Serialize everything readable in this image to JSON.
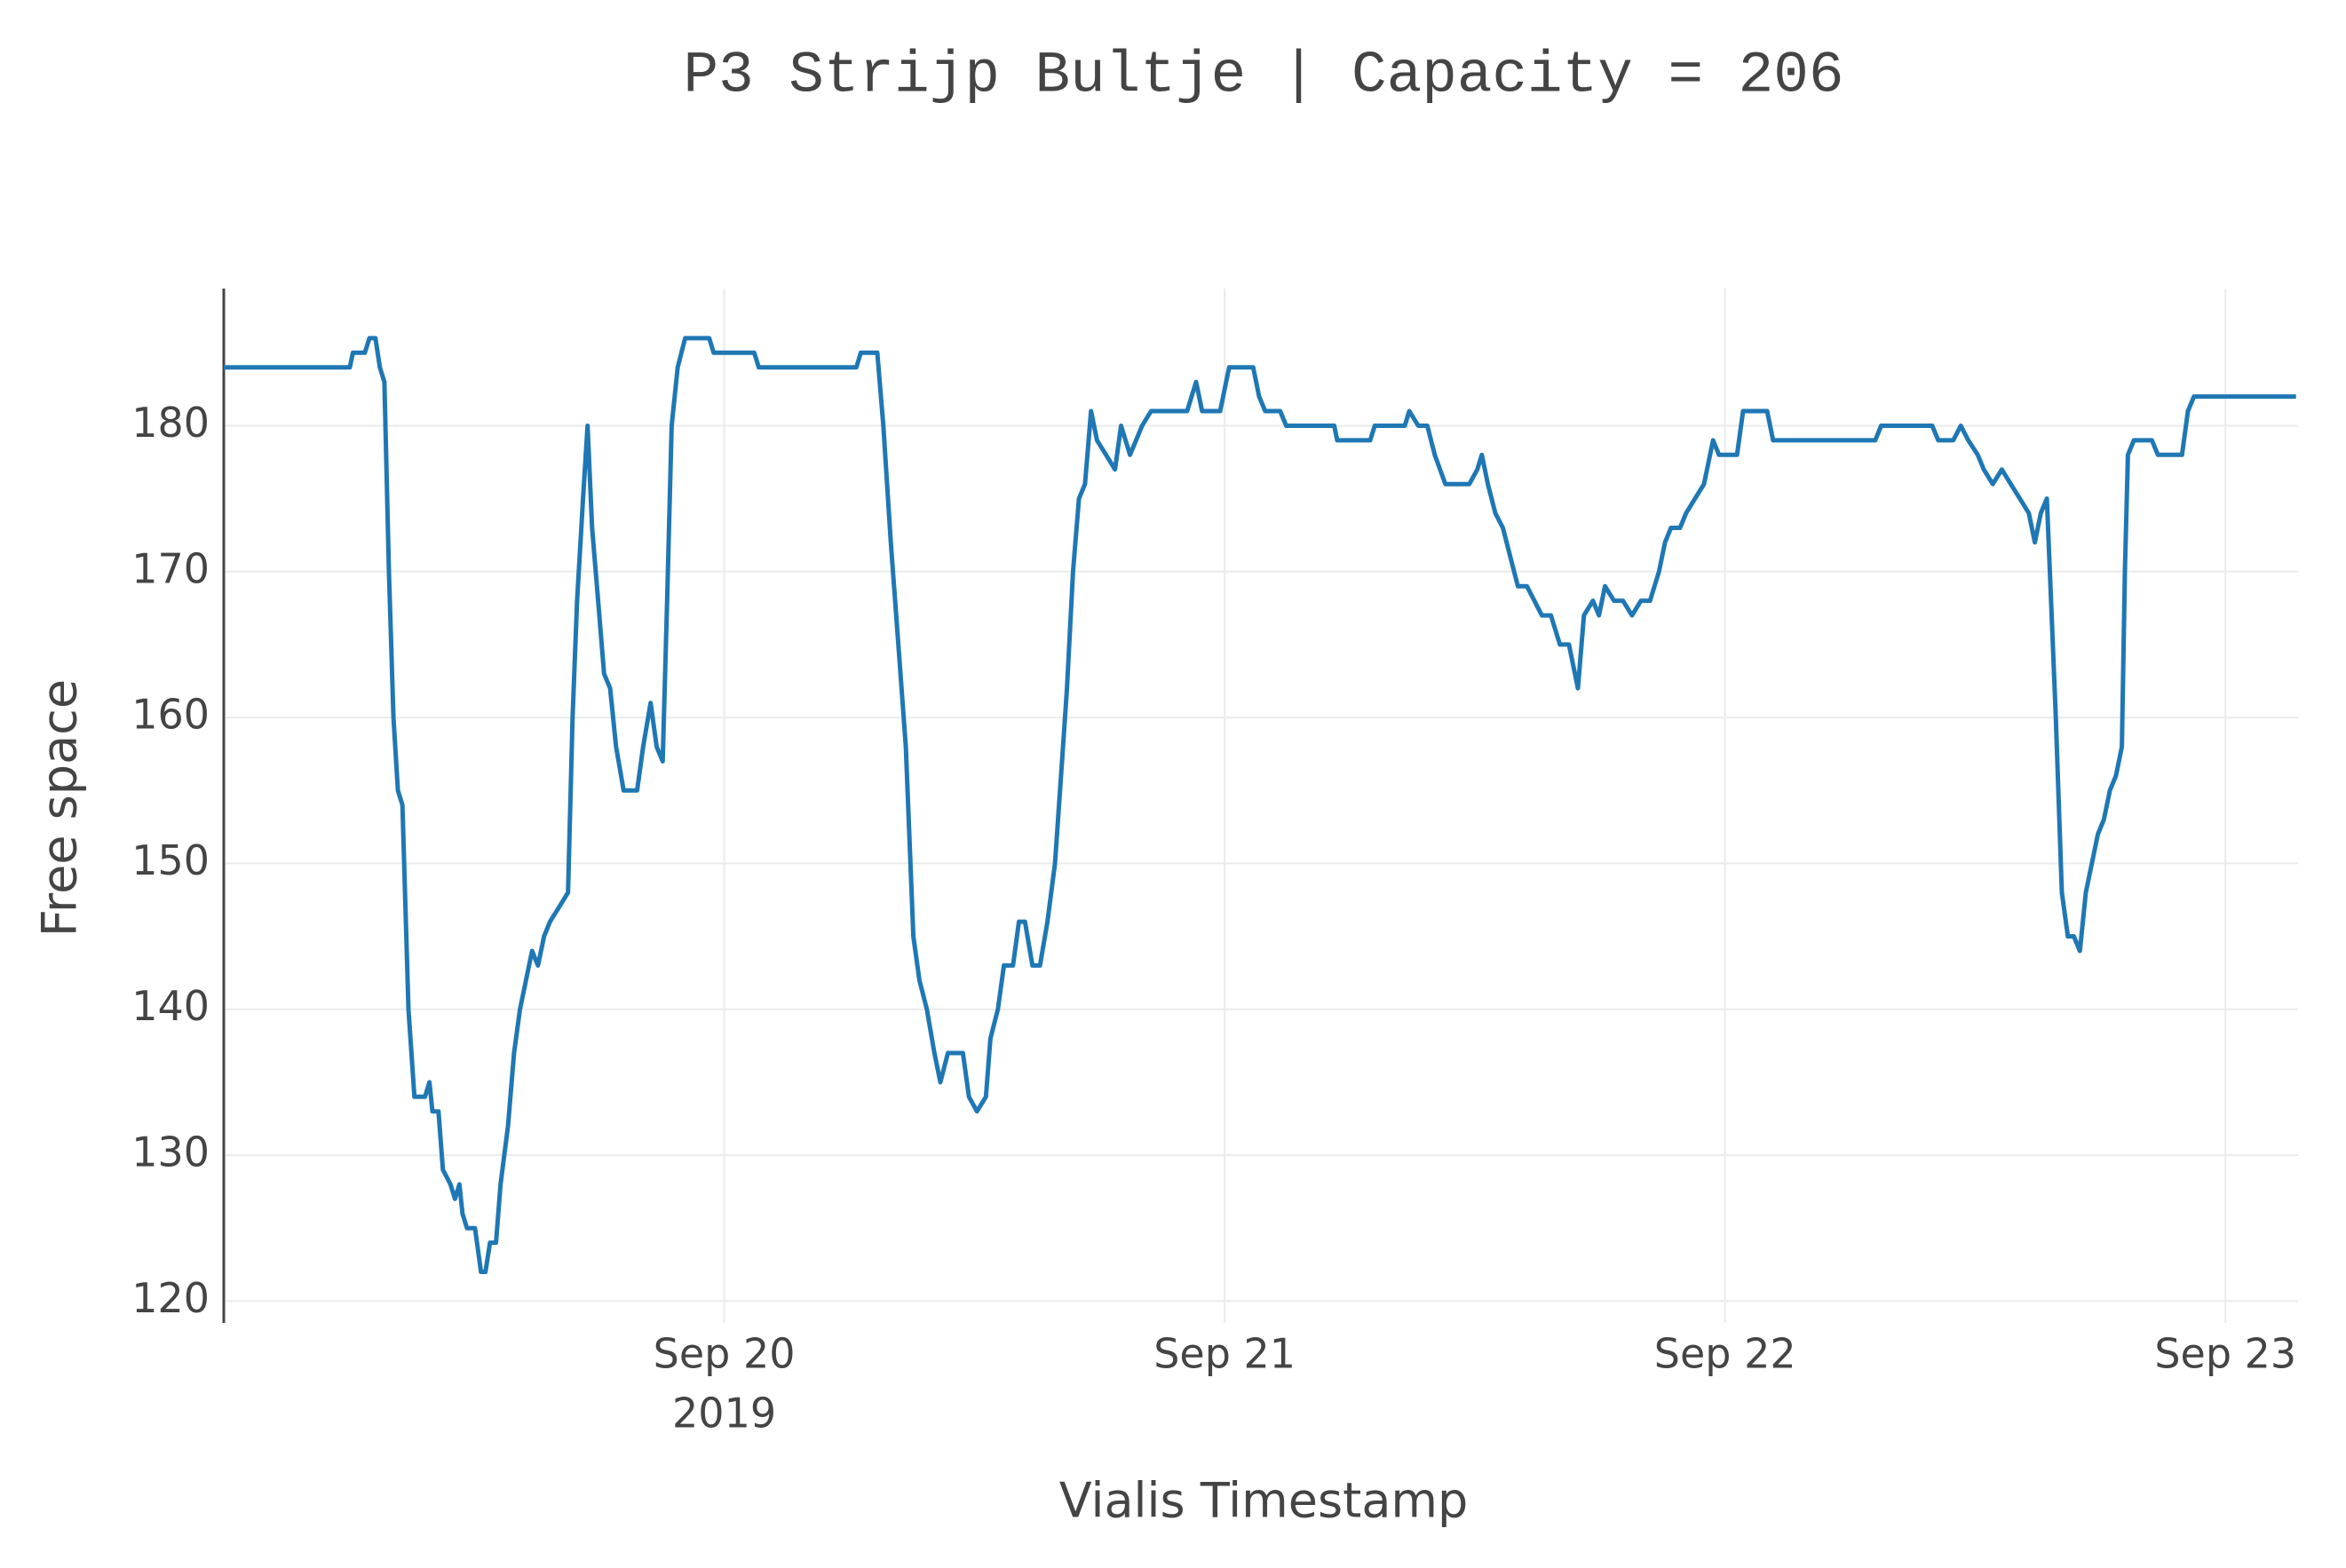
{
  "chart_data": {
    "type": "line",
    "title": "P3 Strijp Bultje  | Capacity = 206",
    "x_label": "Vialis Timestamp",
    "y_label": "Free space",
    "x": [
      19,
      19.252,
      19.258,
      19.282,
      19.291,
      19.303,
      19.312,
      19.321,
      19.33,
      19.339,
      19.348,
      19.357,
      19.369,
      19.381,
      19.402,
      19.411,
      19.417,
      19.429,
      19.438,
      19.453,
      19.462,
      19.471,
      19.477,
      19.486,
      19.502,
      19.514,
      19.523,
      19.532,
      19.544,
      19.553,
      19.568,
      19.58,
      19.592,
      19.604,
      19.616,
      19.628,
      19.64,
      19.652,
      19.67,
      19.688,
      19.697,
      19.706,
      19.718,
      19.727,
      19.736,
      19.748,
      19.76,
      19.772,
      19.784,
      19.799,
      19.826,
      19.838,
      19.853,
      19.865,
      19.877,
      19.886,
      19.895,
      19.907,
      19.922,
      19.97,
      19.979,
      20.06,
      20.069,
      20.264,
      20.273,
      20.306,
      20.318,
      20.333,
      20.348,
      20.363,
      20.378,
      20.39,
      20.405,
      20.42,
      20.432,
      20.447,
      20.477,
      20.489,
      20.505,
      20.523,
      20.532,
      20.547,
      20.559,
      20.577,
      20.589,
      20.601,
      20.616,
      20.631,
      20.646,
      20.661,
      20.673,
      20.685,
      20.697,
      20.709,
      20.721,
      20.733,
      20.745,
      20.763,
      20.781,
      20.793,
      20.811,
      20.835,
      20.853,
      20.883,
      20.901,
      20.925,
      20.943,
      20.955,
      20.991,
      21.009,
      21.057,
      21.069,
      21.081,
      21.111,
      21.123,
      21.219,
      21.225,
      21.291,
      21.3,
      21.36,
      21.369,
      21.387,
      21.405,
      21.42,
      21.441,
      21.489,
      21.505,
      21.514,
      21.526,
      21.541,
      21.556,
      21.571,
      21.586,
      21.604,
      21.619,
      21.634,
      21.652,
      21.67,
      21.688,
      21.706,
      21.718,
      21.736,
      21.748,
      21.76,
      21.778,
      21.796,
      21.814,
      21.832,
      21.85,
      21.868,
      21.88,
      21.892,
      21.91,
      21.922,
      21.94,
      21.958,
      21.976,
      21.988,
      22.024,
      22.036,
      22.084,
      22.096,
      22.3,
      22.312,
      22.414,
      22.426,
      22.456,
      22.471,
      22.486,
      22.505,
      22.517,
      22.535,
      22.553,
      22.571,
      22.589,
      22.607,
      22.619,
      22.631,
      22.643,
      22.649,
      22.661,
      22.673,
      22.685,
      22.697,
      22.709,
      22.721,
      22.733,
      22.745,
      22.757,
      22.769,
      22.781,
      22.793,
      22.799,
      22.805,
      22.817,
      22.853,
      22.865,
      22.913,
      22.925,
      22.937,
      23.141
    ],
    "series": [
      {
        "name": "Free space",
        "color": "#1f77b4",
        "values": [
          184,
          184,
          185,
          185,
          186,
          186,
          184,
          183,
          170,
          160,
          155,
          154,
          140,
          134,
          134,
          135,
          133,
          133,
          129,
          128,
          127,
          128,
          126,
          125,
          125,
          122,
          122,
          124,
          124,
          128,
          132,
          137,
          140,
          142,
          144,
          143,
          145,
          146,
          147,
          148,
          160,
          168,
          175,
          180,
          173,
          168,
          163,
          162,
          158,
          155,
          155,
          158,
          161,
          158,
          157,
          168,
          180,
          184,
          186,
          186,
          185,
          185,
          184,
          184,
          185,
          185,
          180,
          172,
          165,
          158,
          145,
          142,
          140,
          137,
          135,
          137,
          137,
          134,
          133,
          134,
          138,
          140,
          143,
          143,
          146,
          146,
          143,
          143,
          146,
          150,
          156,
          162,
          170,
          175,
          176,
          181,
          179,
          178,
          177,
          180,
          178,
          180,
          181,
          181,
          181,
          181,
          183,
          181,
          181,
          184,
          184,
          182,
          181,
          181,
          180,
          180,
          179,
          179,
          180,
          180,
          181,
          180,
          180,
          178,
          176,
          176,
          177,
          178,
          176,
          174,
          173,
          171,
          169,
          169,
          168,
          167,
          167,
          165,
          165,
          162,
          167,
          168,
          167,
          169,
          168,
          168,
          167,
          168,
          168,
          170,
          172,
          173,
          173,
          174,
          175,
          176,
          179,
          178,
          178,
          181,
          181,
          179,
          179,
          180,
          180,
          179,
          179,
          180,
          179,
          178,
          177,
          176,
          177,
          176,
          175,
          174,
          172,
          174,
          175,
          170,
          160,
          148,
          145,
          145,
          144,
          148,
          150,
          152,
          153,
          155,
          156,
          158,
          170,
          178,
          179,
          179,
          178,
          178,
          181,
          182,
          182
        ]
      }
    ],
    "xlim": [
      19,
      23.145
    ],
    "xticks": [
      {
        "value": 20,
        "label": [
          "Sep 20",
          "2019"
        ]
      },
      {
        "value": 21,
        "label": [
          "Sep 21"
        ]
      },
      {
        "value": 22,
        "label": [
          "Sep 22"
        ]
      },
      {
        "value": 23,
        "label": [
          "Sep 23"
        ]
      }
    ],
    "ylim": [
      118.5,
      189.4
    ],
    "yticks": [
      120,
      130,
      140,
      150,
      160,
      170,
      180
    ],
    "grid": true
  }
}
